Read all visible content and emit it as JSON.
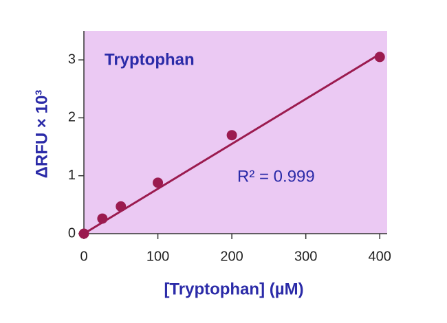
{
  "chart_data": {
    "type": "scatter",
    "annotation": "Tryptophan",
    "r_squared_label": "R² = 0.999",
    "x_label": "[Tryptophan] (µM)",
    "y_label": "ΔRFU × 10³",
    "x": [
      0,
      25,
      50,
      100,
      200,
      400
    ],
    "values": [
      0,
      0.26,
      0.47,
      0.88,
      1.7,
      3.05
    ],
    "color": "#9b1b4f",
    "fit": {
      "x": [
        0,
        400
      ],
      "y": [
        0,
        3.1
      ]
    },
    "xlim": [
      0,
      410
    ],
    "xticks": [
      0,
      100,
      200,
      300,
      400
    ],
    "ylim": [
      0,
      3.5
    ],
    "yticks": [
      0,
      1,
      2,
      3
    ],
    "plot_background": "#ebc9f3"
  }
}
